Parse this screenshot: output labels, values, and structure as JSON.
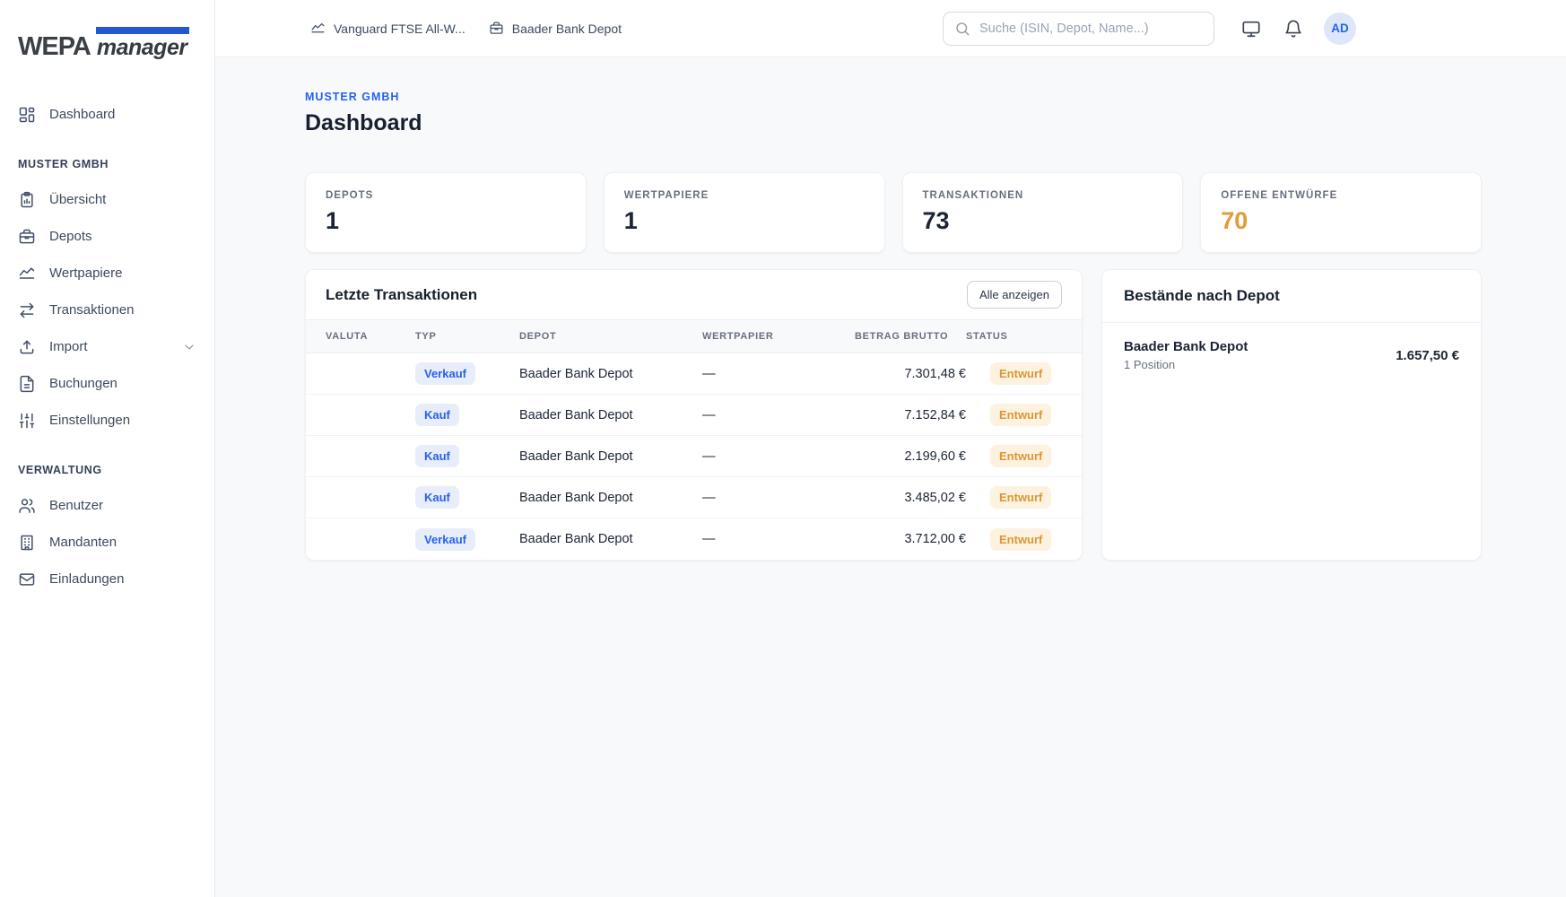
{
  "brand": {
    "name": "WEPA",
    "suffix": "manager"
  },
  "topbar": {
    "links": [
      {
        "icon": "chart-line-icon",
        "label": "Vanguard FTSE All-W..."
      },
      {
        "icon": "briefcase-icon",
        "label": "Baader Bank Depot"
      }
    ],
    "search_placeholder": "Suche (ISIN, Depot, Name...)",
    "action_icons": [
      {
        "icon": "monitor-icon"
      },
      {
        "icon": "bell-icon"
      }
    ],
    "avatar_initials": "AD"
  },
  "sidebar": {
    "dashboard": {
      "icon": "layout-dashboard-icon",
      "label": "Dashboard"
    },
    "sections": [
      {
        "title": "MUSTER GMBH",
        "items": [
          {
            "icon": "clipboard-chart-icon",
            "label": "Übersicht",
            "trailing_icon": ""
          },
          {
            "icon": "briefcase-icon",
            "label": "Depots",
            "trailing_icon": ""
          },
          {
            "icon": "chart-line-icon",
            "label": "Wertpapiere",
            "trailing_icon": ""
          },
          {
            "icon": "arrows-left-right-icon",
            "label": "Transaktionen",
            "trailing_icon": ""
          },
          {
            "icon": "upload-icon",
            "label": "Import",
            "trailing_icon": "chevron-down-icon"
          },
          {
            "icon": "file-text-icon",
            "label": "Buchungen",
            "trailing_icon": ""
          },
          {
            "icon": "sliders-icon",
            "label": "Einstellungen",
            "trailing_icon": ""
          }
        ]
      },
      {
        "title": "VERWALTUNG",
        "items": [
          {
            "icon": "users-icon",
            "label": "Benutzer",
            "trailing_icon": ""
          },
          {
            "icon": "building-icon",
            "label": "Mandanten",
            "trailing_icon": ""
          },
          {
            "icon": "mail-icon",
            "label": "Einladungen",
            "trailing_icon": ""
          }
        ]
      }
    ]
  },
  "page": {
    "breadcrumb": "MUSTER GMBH",
    "title": "Dashboard"
  },
  "stats": [
    {
      "label": "DEPOTS",
      "value": "1",
      "value_class": ""
    },
    {
      "label": "WERTPAPIERE",
      "value": "1",
      "value_class": ""
    },
    {
      "label": "TRANSAKTIONEN",
      "value": "73",
      "value_class": ""
    },
    {
      "label": "OFFENE ENTWÜRFE",
      "value": "70",
      "value_class": "orange"
    }
  ],
  "transactions": {
    "title": "Letzte Transaktionen",
    "action_label": "Alle anzeigen",
    "columns": [
      "VALUTA",
      "TYP",
      "DEPOT",
      "WERTPAPIER",
      "BETRAG BRUTTO",
      "STATUS"
    ],
    "rows": [
      {
        "valuta": "",
        "typ": "Verkauf",
        "depot": "Baader Bank Depot",
        "wertpapier": "—",
        "betrag": "7.301,48 €",
        "status": "Entwurf"
      },
      {
        "valuta": "",
        "typ": "Kauf",
        "depot": "Baader Bank Depot",
        "wertpapier": "—",
        "betrag": "7.152,84 €",
        "status": "Entwurf"
      },
      {
        "valuta": "",
        "typ": "Kauf",
        "depot": "Baader Bank Depot",
        "wertpapier": "—",
        "betrag": "2.199,60 €",
        "status": "Entwurf"
      },
      {
        "valuta": "",
        "typ": "Kauf",
        "depot": "Baader Bank Depot",
        "wertpapier": "—",
        "betrag": "3.485,02 €",
        "status": "Entwurf"
      },
      {
        "valuta": "",
        "typ": "Verkauf",
        "depot": "Baader Bank Depot",
        "wertpapier": "—",
        "betrag": "3.712,00 €",
        "status": "Entwurf"
      }
    ]
  },
  "holdings": {
    "title": "Bestände nach Depot",
    "items": [
      {
        "name": "Baader Bank Depot",
        "sub": "1 Position",
        "value": "1.657,50 €"
      }
    ]
  },
  "colors": {
    "accent_blue": "#2563eb",
    "logo_bar_blue": "#2158cf",
    "orange_value": "#e39b33",
    "badge_typ_bg": "#e7edfa",
    "badge_typ_text": "#2862e9",
    "badge_status_bg": "#fcf2df",
    "badge_status_text": "#dd9733"
  }
}
